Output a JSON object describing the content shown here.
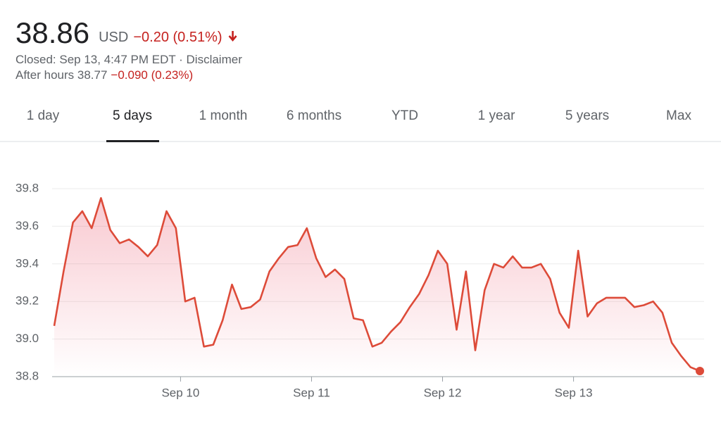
{
  "header": {
    "price": "38.86",
    "currency": "USD",
    "change": "−0.20 (0.51%)",
    "closed": "Closed: Sep 13, 4:47 PM EDT · Disclaimer",
    "after_hours": "After hours 38.77",
    "after_hours_change": "−0.090 (0.23%)"
  },
  "tabs": {
    "items": [
      "1 day",
      "5 days",
      "1 month",
      "6 months",
      "YTD",
      "1 year",
      "5 years",
      "Max"
    ],
    "selected": 1
  },
  "chart_data": {
    "type": "line",
    "color": "#dd4b39",
    "grid": true,
    "categories": [
      null,
      null,
      null,
      null,
      null,
      null,
      null,
      null,
      null,
      null,
      null,
      null,
      null,
      "Sep 10",
      null,
      null,
      null,
      null,
      null,
      null,
      null,
      null,
      null,
      null,
      null,
      null,
      null,
      "Sep 11",
      null,
      null,
      null,
      null,
      null,
      null,
      null,
      null,
      null,
      null,
      null,
      null,
      null,
      "Sep 12",
      null,
      null,
      null,
      null,
      null,
      null,
      null,
      null,
      null,
      null,
      null,
      null,
      null,
      "Sep 13",
      null,
      null,
      null,
      null,
      null,
      null,
      null,
      null,
      null,
      null,
      null,
      null,
      null,
      null
    ],
    "values": [
      39.07,
      39.36,
      39.62,
      39.68,
      39.59,
      39.75,
      39.58,
      39.51,
      39.53,
      39.49,
      39.44,
      39.5,
      39.68,
      39.59,
      39.2,
      39.22,
      38.96,
      38.97,
      39.1,
      39.29,
      39.16,
      39.17,
      39.21,
      39.36,
      39.43,
      39.49,
      39.5,
      39.59,
      39.43,
      39.33,
      39.37,
      39.32,
      39.11,
      39.1,
      38.96,
      38.98,
      39.04,
      39.09,
      39.17,
      39.24,
      39.34,
      39.47,
      39.4,
      39.05,
      39.36,
      38.94,
      39.26,
      39.4,
      39.38,
      39.44,
      39.38,
      39.38,
      39.4,
      39.32,
      39.14,
      39.06,
      39.47,
      39.12,
      39.19,
      39.22,
      39.22,
      39.22,
      39.17,
      39.18,
      39.2,
      39.14,
      38.98,
      38.91,
      38.85,
      38.83
    ],
    "ylim": [
      38.8,
      39.9
    ],
    "yticks": [
      38.8,
      {
        "value": 39,
        "label": "39.0"
      },
      39.2,
      39.4,
      39.6,
      39.8
    ]
  }
}
